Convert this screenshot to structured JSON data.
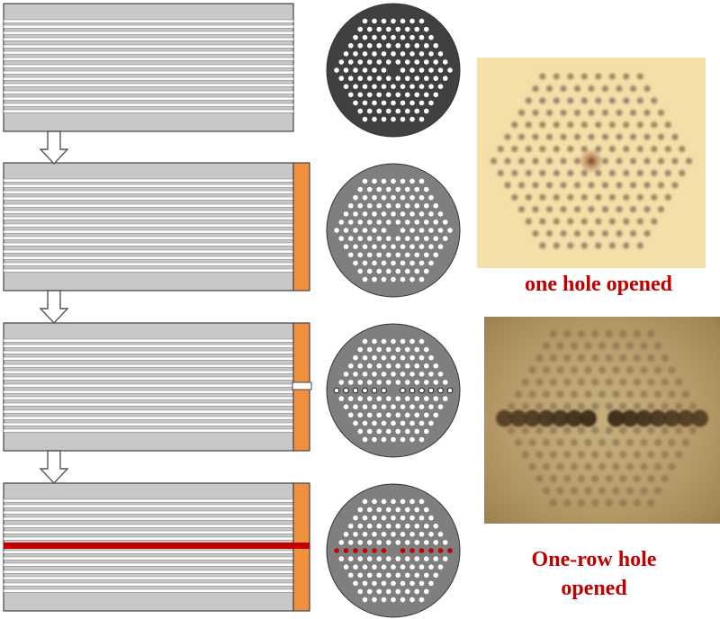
{
  "captions": {
    "first": "one hole opened",
    "second_line1": "One-row hole",
    "second_line2": "opened"
  },
  "colors": {
    "fiber_gray": "#c8c8c8",
    "capillary_stripe": "#ffffff",
    "frame": "#444444",
    "end_cap": "#f0913f",
    "cross_section_dark": "#404040",
    "cross_section_gray": "#7f7f7f",
    "hole": "#ffffff",
    "opened_row": "#c00000",
    "caption": "#c00000"
  },
  "steps": [
    {
      "stage": "bare fiber",
      "end_cap": false,
      "opened": "none",
      "cross_section": "dark"
    },
    {
      "stage": "ends sealed",
      "end_cap": true,
      "opened": "none",
      "cross_section": "gray"
    },
    {
      "stage": "one row opened at end",
      "end_cap": true,
      "opened": "row-end",
      "cross_section": "gray-row-outlined"
    },
    {
      "stage": "one row filled through fiber",
      "end_cap": true,
      "opened": "row-full",
      "cross_section": "gray-row-red"
    }
  ],
  "photos": [
    {
      "name": "micrograph-one-hole",
      "description_hidden": true
    },
    {
      "name": "micrograph-one-row",
      "description_hidden": true
    }
  ]
}
